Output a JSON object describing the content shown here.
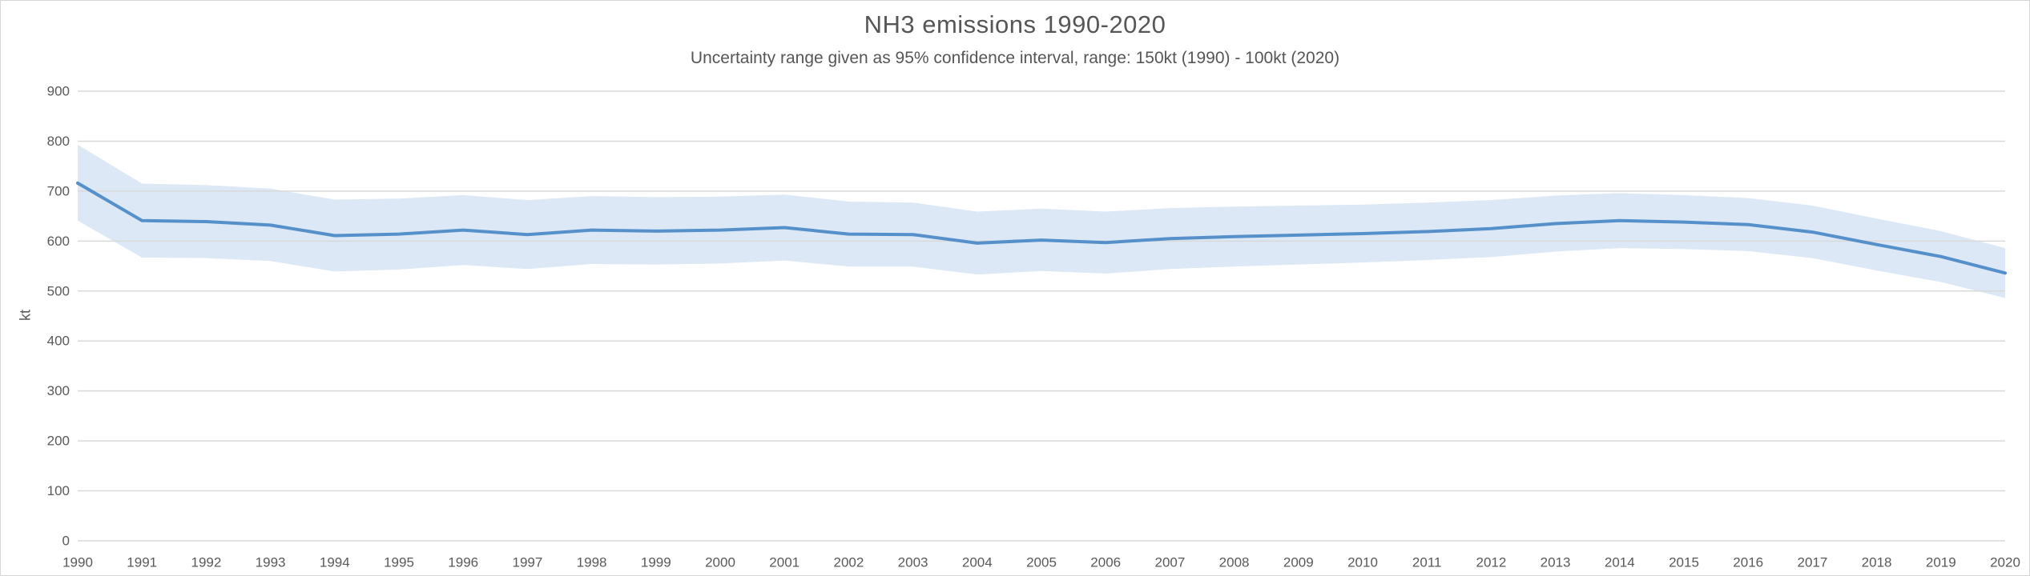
{
  "chart": {
    "title": "NH3 emissions 1990-2020",
    "subtitle": "Uncertainty range given as 95% confidence interval, range: 150kt (1990) - 100kt (2020)",
    "y_axis_label": "kt"
  },
  "colors": {
    "background": "#ffffff",
    "border": "#d6d6d6",
    "grid": "#d9d9d9",
    "line": "#5590ca",
    "band": "#dce8f5",
    "tick_text": "#595959",
    "title_text": "#565656"
  },
  "chart_data": {
    "type": "line",
    "title": "NH3 emissions 1990-2020",
    "subtitle": "Uncertainty range given as 95% confidence interval, range: 150kt (1990) - 100kt (2020)",
    "xlabel": "",
    "ylabel": "kt",
    "ylim": [
      0,
      900
    ],
    "yticks": [
      0,
      100,
      200,
      300,
      400,
      500,
      600,
      700,
      800,
      900
    ],
    "grid": true,
    "legend": "none",
    "band_meaning": "95% confidence interval, range 150kt (1990) to 100kt (2020)",
    "x": [
      1990,
      1991,
      1992,
      1993,
      1994,
      1995,
      1996,
      1997,
      1998,
      1999,
      2000,
      2001,
      2002,
      2003,
      2004,
      2005,
      2006,
      2007,
      2008,
      2009,
      2010,
      2011,
      2012,
      2013,
      2014,
      2015,
      2016,
      2017,
      2018,
      2019,
      2020
    ],
    "series": [
      {
        "name": "NH3 emissions (kt)",
        "values": [
          716,
          641,
          639,
          632,
          611,
          614,
          622,
          613,
          622,
          620,
          622,
          627,
          614,
          613,
          596,
          602,
          597,
          605,
          609,
          612,
          615,
          619,
          625,
          635,
          641,
          638,
          633,
          618,
          593,
          569,
          536
        ]
      },
      {
        "name": "Upper 95% CI (kt)",
        "values": [
          793,
          715,
          712,
          705,
          683,
          685,
          692,
          682,
          690,
          688,
          689,
          693,
          679,
          677,
          659,
          665,
          659,
          666,
          669,
          671,
          673,
          677,
          682,
          691,
          696,
          692,
          686,
          671,
          645,
          620,
          586
        ]
      },
      {
        "name": "Lower 95% CI (kt)",
        "values": [
          641,
          567,
          566,
          560,
          539,
          543,
          552,
          544,
          554,
          553,
          555,
          561,
          549,
          549,
          533,
          540,
          535,
          544,
          549,
          553,
          557,
          562,
          568,
          579,
          586,
          584,
          580,
          566,
          541,
          518,
          486
        ]
      }
    ]
  }
}
